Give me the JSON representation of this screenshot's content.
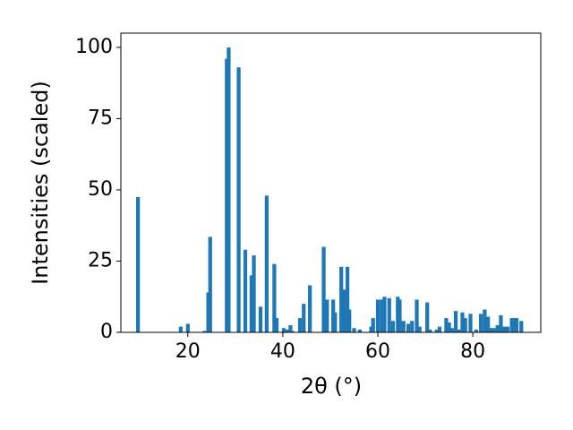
{
  "chart_data": {
    "type": "bar",
    "xlabel": "2θ (°)",
    "ylabel": "Intensities (scaled)",
    "color": "#1f77b4",
    "x": [
      9.5,
      18.5,
      20,
      23.5,
      24.3,
      24.7,
      28.2,
      28.6,
      30.7,
      32.1,
      33.4,
      33.9,
      35.3,
      36.6,
      38.2,
      38.7,
      40.2,
      41,
      41.6,
      42,
      43.6,
      44.4,
      45.7,
      48.6,
      49.3,
      50.6,
      51,
      52.3,
      52.9,
      53.6,
      54,
      55,
      56.2,
      58.6,
      59,
      60,
      60.8,
      61.4,
      62.4,
      63.2,
      64.2,
      64.6,
      65.4,
      66.4,
      67.2,
      68.2,
      68.8,
      70.4,
      71,
      72.4,
      73,
      74.4,
      75,
      75.6,
      76.4,
      77,
      77.8,
      78.4,
      79.5,
      80.7,
      81.7,
      82.5,
      83.2,
      83.8,
      84.4,
      85.2,
      85.9,
      86.6,
      87.3,
      88.2,
      88.7,
      89.2,
      90.2
    ],
    "values": [
      47.5,
      2,
      3,
      0.5,
      14,
      33.5,
      96,
      100,
      93,
      29,
      20,
      27,
      9,
      48,
      24,
      5,
      1.5,
      1,
      2.5,
      0.5,
      5,
      10,
      16.5,
      30,
      11.5,
      11.5,
      7,
      23,
      15,
      23,
      8,
      1.5,
      1,
      2,
      5,
      11.5,
      11.5,
      12.5,
      12,
      4,
      12.5,
      11.5,
      4,
      3,
      4,
      11.5,
      2,
      10.5,
      1,
      1,
      2,
      5,
      3.5,
      1.5,
      7.5,
      1,
      7,
      5,
      6.5,
      1,
      6.5,
      8,
      5.5,
      1.5,
      1.5,
      2.5,
      6,
      2,
      2,
      5,
      5,
      5,
      4
    ],
    "xlim": [
      5.9,
      94.3
    ],
    "ylim": [
      0,
      105
    ],
    "xticks": [
      20,
      40,
      60,
      80
    ],
    "yticks": [
      0,
      25,
      50,
      75,
      100
    ]
  }
}
